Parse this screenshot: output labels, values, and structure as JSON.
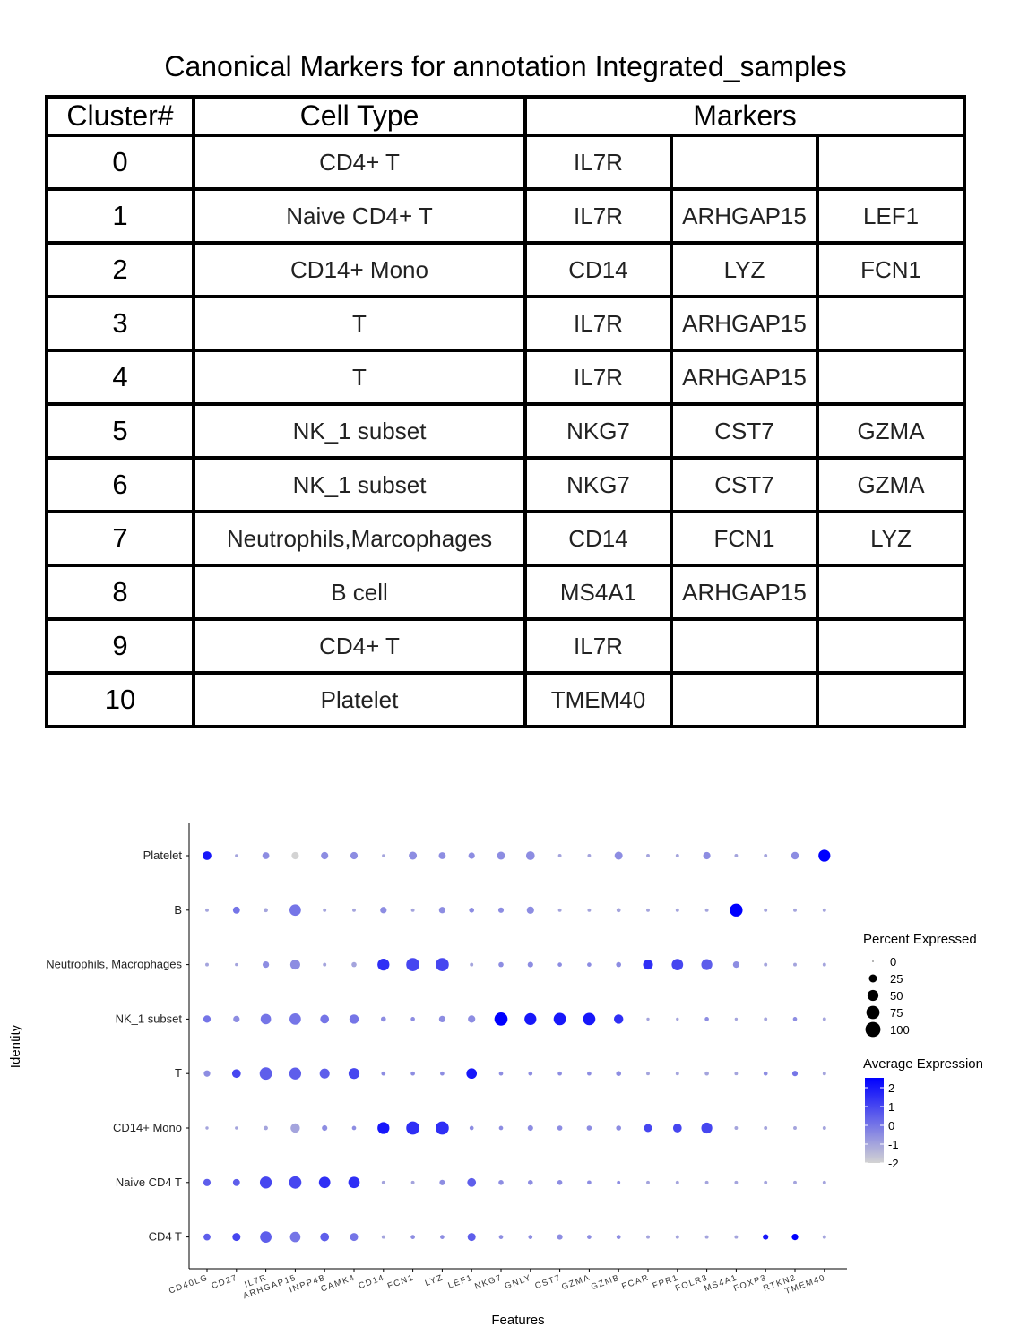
{
  "title": "Canonical Markers for annotation Integrated_samples",
  "table": {
    "headers": [
      "Cluster#",
      "Cell Type",
      "Markers"
    ],
    "rows": [
      {
        "cluster": "0",
        "cell_type": "CD4+ T",
        "markers": [
          "IL7R",
          "",
          ""
        ]
      },
      {
        "cluster": "1",
        "cell_type": "Naive CD4+ T",
        "markers": [
          "IL7R",
          "ARHGAP15",
          "LEF1"
        ]
      },
      {
        "cluster": "2",
        "cell_type": "CD14+ Mono",
        "markers": [
          "CD14",
          "LYZ",
          "FCN1"
        ]
      },
      {
        "cluster": "3",
        "cell_type": "T",
        "markers": [
          "IL7R",
          "ARHGAP15",
          ""
        ]
      },
      {
        "cluster": "4",
        "cell_type": "T",
        "markers": [
          "IL7R",
          "ARHGAP15",
          ""
        ]
      },
      {
        "cluster": "5",
        "cell_type": "NK_1 subset",
        "markers": [
          "NKG7",
          "CST7",
          "GZMA"
        ]
      },
      {
        "cluster": "6",
        "cell_type": "NK_1 subset",
        "markers": [
          "NKG7",
          "CST7",
          "GZMA"
        ]
      },
      {
        "cluster": "7",
        "cell_type": "Neutrophils,Marcophages",
        "markers": [
          "CD14",
          "FCN1",
          "LYZ"
        ]
      },
      {
        "cluster": "8",
        "cell_type": "B  cell",
        "markers": [
          "MS4A1",
          "ARHGAP15",
          ""
        ]
      },
      {
        "cluster": "9",
        "cell_type": "CD4+ T",
        "markers": [
          "IL7R",
          "",
          ""
        ]
      },
      {
        "cluster": "10",
        "cell_type": "Platelet",
        "markers": [
          "TMEM40",
          "",
          ""
        ]
      }
    ]
  },
  "chart_data": {
    "type": "scatter",
    "subtype": "dotplot",
    "xlabel": "Features",
    "ylabel": "Identity",
    "features": [
      "CD40LG",
      "CD27",
      "IL7R",
      "ARHGAP15",
      "INPP4B",
      "CAMK4",
      "CD14",
      "FCN1",
      "LYZ",
      "LEF1",
      "NKG7",
      "GNLY",
      "CST7",
      "GZMA",
      "GZMB",
      "FCAR",
      "FPR1",
      "FOLR3",
      "MS4A1",
      "FOXP3",
      "RTKN2",
      "TMEM40"
    ],
    "identities": [
      "Platelet",
      "B",
      "Neutrophils, Macrophages",
      "NK_1 subset",
      "T",
      "CD14+ Mono",
      "Naive CD4 T",
      "CD4 T"
    ],
    "percent_expressed": [
      [
        30,
        2,
        18,
        20,
        20,
        20,
        2,
        25,
        18,
        15,
        25,
        30,
        3,
        3,
        25,
        3,
        3,
        20,
        3,
        3,
        22,
        60
      ],
      [
        3,
        18,
        5,
        55,
        3,
        3,
        15,
        3,
        15,
        8,
        10,
        20,
        3,
        3,
        5,
        3,
        3,
        3,
        70,
        3,
        3,
        3
      ],
      [
        3,
        2,
        15,
        40,
        3,
        8,
        60,
        75,
        75,
        3,
        8,
        10,
        5,
        5,
        8,
        40,
        55,
        50,
        15,
        3,
        3,
        3
      ],
      [
        20,
        15,
        45,
        55,
        30,
        35,
        8,
        5,
        15,
        20,
        75,
        60,
        65,
        65,
        35,
        2,
        2,
        5,
        2,
        3,
        5,
        3
      ],
      [
        15,
        30,
        65,
        60,
        40,
        50,
        5,
        5,
        5,
        45,
        5,
        5,
        5,
        5,
        8,
        3,
        3,
        5,
        3,
        5,
        10,
        3
      ],
      [
        2,
        2,
        5,
        35,
        10,
        5,
        60,
        75,
        75,
        5,
        5,
        10,
        8,
        8,
        8,
        25,
        30,
        50,
        3,
        3,
        3,
        3
      ],
      [
        20,
        18,
        60,
        65,
        55,
        55,
        3,
        3,
        10,
        30,
        8,
        8,
        8,
        5,
        3,
        3,
        3,
        3,
        3,
        3,
        3,
        3
      ],
      [
        18,
        25,
        55,
        45,
        30,
        25,
        3,
        5,
        5,
        25,
        5,
        5,
        10,
        5,
        5,
        3,
        3,
        3,
        3,
        10,
        15,
        3
      ]
    ],
    "average_expression": [
      [
        2.0,
        -1.0,
        -0.5,
        -2.0,
        -0.5,
        -0.5,
        -1.0,
        -0.5,
        -0.5,
        -0.5,
        -0.5,
        -0.5,
        -1.0,
        -1.0,
        -0.5,
        -1.0,
        -1.0,
        -0.5,
        -1.0,
        -1.0,
        -0.5,
        2.5
      ],
      [
        -1.0,
        0.0,
        -1.0,
        0.0,
        -1.0,
        -1.0,
        -0.5,
        -1.0,
        -0.5,
        -0.5,
        -0.5,
        -0.5,
        -1.0,
        -1.0,
        -1.0,
        -1.0,
        -1.0,
        -1.0,
        2.5,
        -1.0,
        -1.0,
        -1.0
      ],
      [
        -1.0,
        -1.0,
        -0.5,
        -0.5,
        -1.0,
        -1.0,
        1.5,
        1.0,
        1.0,
        -1.0,
        -0.5,
        -0.5,
        -0.5,
        -0.5,
        -0.5,
        1.5,
        1.0,
        0.5,
        -0.5,
        -1.0,
        -1.0,
        -1.0
      ],
      [
        0.0,
        -0.5,
        0.0,
        0.0,
        0.0,
        0.0,
        -0.5,
        -0.5,
        -0.5,
        -0.5,
        2.5,
        2.0,
        2.0,
        2.0,
        1.5,
        -1.0,
        -1.0,
        -0.5,
        -1.0,
        -1.0,
        -0.5,
        -1.0
      ],
      [
        -0.5,
        1.0,
        0.5,
        0.5,
        0.5,
        1.0,
        -0.5,
        -0.5,
        -0.5,
        2.0,
        -0.5,
        -0.5,
        -0.5,
        -0.5,
        -0.5,
        -1.0,
        -1.0,
        -1.0,
        -1.0,
        -0.5,
        0.0,
        -1.0
      ],
      [
        -1.0,
        -1.0,
        -1.0,
        -1.0,
        -0.5,
        -0.5,
        2.0,
        1.5,
        1.5,
        -0.5,
        -0.5,
        -0.5,
        -0.5,
        -0.5,
        -0.5,
        1.0,
        1.0,
        1.0,
        -1.0,
        -1.0,
        -1.0,
        -1.0
      ],
      [
        0.5,
        0.5,
        1.0,
        1.0,
        1.5,
        1.5,
        -1.0,
        -1.0,
        -0.5,
        0.5,
        -0.5,
        -0.5,
        -0.5,
        -0.5,
        -0.5,
        -1.0,
        -1.0,
        -1.0,
        -1.0,
        -1.0,
        -1.0,
        -1.0
      ],
      [
        0.5,
        1.0,
        0.5,
        0.0,
        0.5,
        0.0,
        -1.0,
        -0.5,
        -0.5,
        0.5,
        -0.5,
        -0.5,
        -0.5,
        -0.5,
        -0.5,
        -1.0,
        -1.0,
        -1.0,
        -1.0,
        2.0,
        2.5,
        -1.0
      ]
    ],
    "size_legend": {
      "title": "Percent Expressed",
      "breaks": [
        0,
        25,
        50,
        75,
        100
      ]
    },
    "color_legend": {
      "title": "Average Expression",
      "breaks": [
        2,
        1,
        0,
        -1,
        -2
      ],
      "low_color": "#d3d3d3",
      "high_color": "#0000ff"
    },
    "grid": false
  }
}
